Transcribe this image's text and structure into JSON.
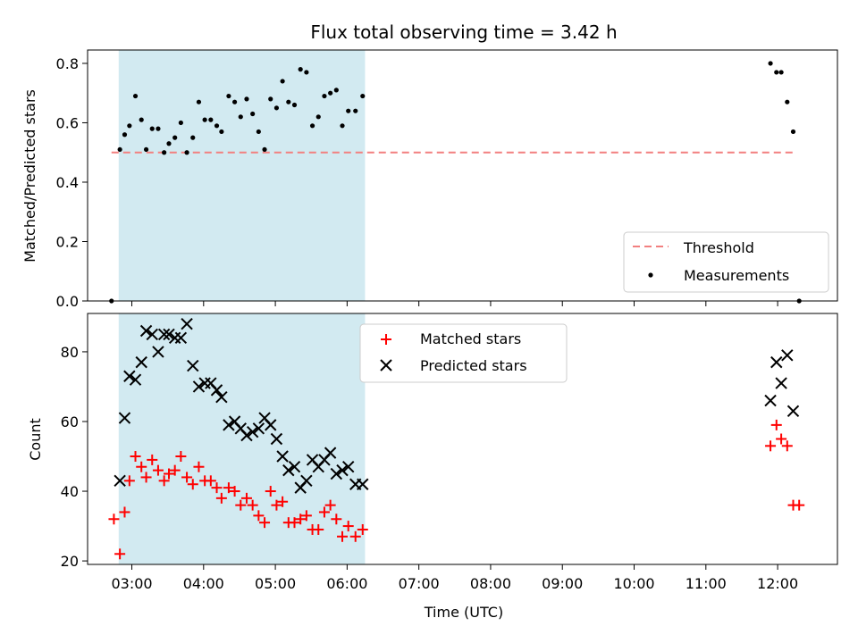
{
  "chart_data": [
    {
      "type": "scatter",
      "title": "Flux total observing time = 3.42 h",
      "xlabel": "",
      "ylabel": "Matched/Predicted stars",
      "xlim": [
        "02:23",
        "12:50"
      ],
      "ylim": [
        0,
        0.845
      ],
      "yticks": [
        0.0,
        0.2,
        0.4,
        0.6,
        0.8
      ],
      "ytick_labels": [
        "0.0",
        "0.2",
        "0.4",
        "0.6",
        "0.8"
      ],
      "grid": false,
      "legend_placement": "bottom-right",
      "shaded_interval": {
        "start": "02:49",
        "end": "06:15",
        "color": "#add8e6"
      },
      "threshold": {
        "name": "Threshold",
        "value": 0.5,
        "x_range": [
          "02:43",
          "12:15"
        ],
        "color": "#f28080"
      },
      "series": [
        {
          "name": "Measurements",
          "color": "#000000",
          "marker": "dot",
          "points": [
            [
              "02:43",
              0.0
            ],
            [
              "02:50",
              0.51
            ],
            [
              "02:54",
              0.56
            ],
            [
              "02:58",
              0.59
            ],
            [
              "03:03",
              0.69
            ],
            [
              "03:08",
              0.61
            ],
            [
              "03:12",
              0.51
            ],
            [
              "03:17",
              0.58
            ],
            [
              "03:22",
              0.58
            ],
            [
              "03:27",
              0.5
            ],
            [
              "03:31",
              0.53
            ],
            [
              "03:36",
              0.55
            ],
            [
              "03:41",
              0.6
            ],
            [
              "03:46",
              0.5
            ],
            [
              "03:51",
              0.55
            ],
            [
              "03:56",
              0.67
            ],
            [
              "04:01",
              0.61
            ],
            [
              "04:06",
              0.61
            ],
            [
              "04:11",
              0.59
            ],
            [
              "04:15",
              0.57
            ],
            [
              "04:21",
              0.69
            ],
            [
              "04:26",
              0.67
            ],
            [
              "04:31",
              0.62
            ],
            [
              "04:36",
              0.68
            ],
            [
              "04:41",
              0.63
            ],
            [
              "04:46",
              0.57
            ],
            [
              "04:51",
              0.51
            ],
            [
              "04:56",
              0.68
            ],
            [
              "05:01",
              0.65
            ],
            [
              "05:06",
              0.74
            ],
            [
              "05:11",
              0.67
            ],
            [
              "05:16",
              0.66
            ],
            [
              "05:21",
              0.78
            ],
            [
              "05:26",
              0.77
            ],
            [
              "05:31",
              0.59
            ],
            [
              "05:36",
              0.62
            ],
            [
              "05:41",
              0.69
            ],
            [
              "05:46",
              0.7
            ],
            [
              "05:51",
              0.71
            ],
            [
              "05:56",
              0.59
            ],
            [
              "06:01",
              0.64
            ],
            [
              "06:07",
              0.64
            ],
            [
              "06:13",
              0.69
            ],
            [
              "11:54",
              0.8
            ],
            [
              "11:59",
              0.77
            ],
            [
              "12:03",
              0.77
            ],
            [
              "12:08",
              0.67
            ],
            [
              "12:13",
              0.57
            ],
            [
              "12:18",
              0.0
            ]
          ]
        }
      ]
    },
    {
      "type": "scatter",
      "title": "",
      "xlabel": "Time (UTC)",
      "ylabel": "Count",
      "xlim": [
        "02:23",
        "12:50"
      ],
      "ylim": [
        19,
        91
      ],
      "yticks": [
        20,
        40,
        60,
        80
      ],
      "ytick_labels": [
        "20",
        "40",
        "60",
        "80"
      ],
      "xticks": [
        "03:00",
        "04:00",
        "05:00",
        "06:00",
        "07:00",
        "08:00",
        "09:00",
        "10:00",
        "11:00",
        "12:00"
      ],
      "grid": false,
      "legend_placement": "top-center",
      "shaded_interval": {
        "start": "02:49",
        "end": "06:15",
        "color": "#add8e6"
      },
      "series": [
        {
          "name": "Matched stars",
          "color": "#ff0000",
          "marker": "plus",
          "points": [
            [
              "02:45",
              32
            ],
            [
              "02:50",
              22
            ],
            [
              "02:54",
              34
            ],
            [
              "02:58",
              43
            ],
            [
              "03:03",
              50
            ],
            [
              "03:08",
              47
            ],
            [
              "03:12",
              44
            ],
            [
              "03:17",
              49
            ],
            [
              "03:22",
              46
            ],
            [
              "03:27",
              43
            ],
            [
              "03:31",
              45
            ],
            [
              "03:36",
              46
            ],
            [
              "03:41",
              50
            ],
            [
              "03:46",
              44
            ],
            [
              "03:51",
              42
            ],
            [
              "03:56",
              47
            ],
            [
              "04:01",
              43
            ],
            [
              "04:06",
              43
            ],
            [
              "04:11",
              41
            ],
            [
              "04:15",
              38
            ],
            [
              "04:21",
              41
            ],
            [
              "04:26",
              40
            ],
            [
              "04:31",
              36
            ],
            [
              "04:36",
              38
            ],
            [
              "04:41",
              36
            ],
            [
              "04:46",
              33
            ],
            [
              "04:51",
              31
            ],
            [
              "04:56",
              40
            ],
            [
              "05:01",
              36
            ],
            [
              "05:06",
              37
            ],
            [
              "05:11",
              31
            ],
            [
              "05:16",
              31
            ],
            [
              "05:21",
              32
            ],
            [
              "05:26",
              33
            ],
            [
              "05:31",
              29
            ],
            [
              "05:36",
              29
            ],
            [
              "05:41",
              34
            ],
            [
              "05:46",
              36
            ],
            [
              "05:51",
              32
            ],
            [
              "05:56",
              27
            ],
            [
              "06:01",
              30
            ],
            [
              "06:07",
              27
            ],
            [
              "06:13",
              29
            ],
            [
              "11:54",
              53
            ],
            [
              "11:59",
              59
            ],
            [
              "12:03",
              55
            ],
            [
              "12:08",
              53
            ],
            [
              "12:13",
              36
            ],
            [
              "12:18",
              36
            ]
          ]
        },
        {
          "name": "Predicted stars",
          "color": "#000000",
          "marker": "x",
          "points": [
            [
              "02:50",
              43
            ],
            [
              "02:54",
              61
            ],
            [
              "02:58",
              73
            ],
            [
              "03:03",
              72
            ],
            [
              "03:08",
              77
            ],
            [
              "03:12",
              86
            ],
            [
              "03:17",
              85
            ],
            [
              "03:22",
              80
            ],
            [
              "03:27",
              85
            ],
            [
              "03:31",
              85
            ],
            [
              "03:36",
              84
            ],
            [
              "03:41",
              84
            ],
            [
              "03:46",
              88
            ],
            [
              "03:51",
              76
            ],
            [
              "03:56",
              70
            ],
            [
              "04:01",
              71
            ],
            [
              "04:06",
              71
            ],
            [
              "04:11",
              69
            ],
            [
              "04:15",
              67
            ],
            [
              "04:21",
              59
            ],
            [
              "04:26",
              60
            ],
            [
              "04:31",
              58
            ],
            [
              "04:36",
              56
            ],
            [
              "04:41",
              57
            ],
            [
              "04:46",
              58
            ],
            [
              "04:51",
              61
            ],
            [
              "04:56",
              59
            ],
            [
              "05:01",
              55
            ],
            [
              "05:06",
              50
            ],
            [
              "05:11",
              46
            ],
            [
              "05:16",
              47
            ],
            [
              "05:21",
              41
            ],
            [
              "05:26",
              43
            ],
            [
              "05:31",
              49
            ],
            [
              "05:36",
              47
            ],
            [
              "05:41",
              49
            ],
            [
              "05:46",
              51
            ],
            [
              "05:51",
              45
            ],
            [
              "05:56",
              46
            ],
            [
              "06:01",
              47
            ],
            [
              "06:07",
              42
            ],
            [
              "06:13",
              42
            ],
            [
              "11:54",
              66
            ],
            [
              "11:59",
              77
            ],
            [
              "12:03",
              71
            ],
            [
              "12:08",
              79
            ],
            [
              "12:13",
              63
            ]
          ]
        }
      ]
    }
  ]
}
